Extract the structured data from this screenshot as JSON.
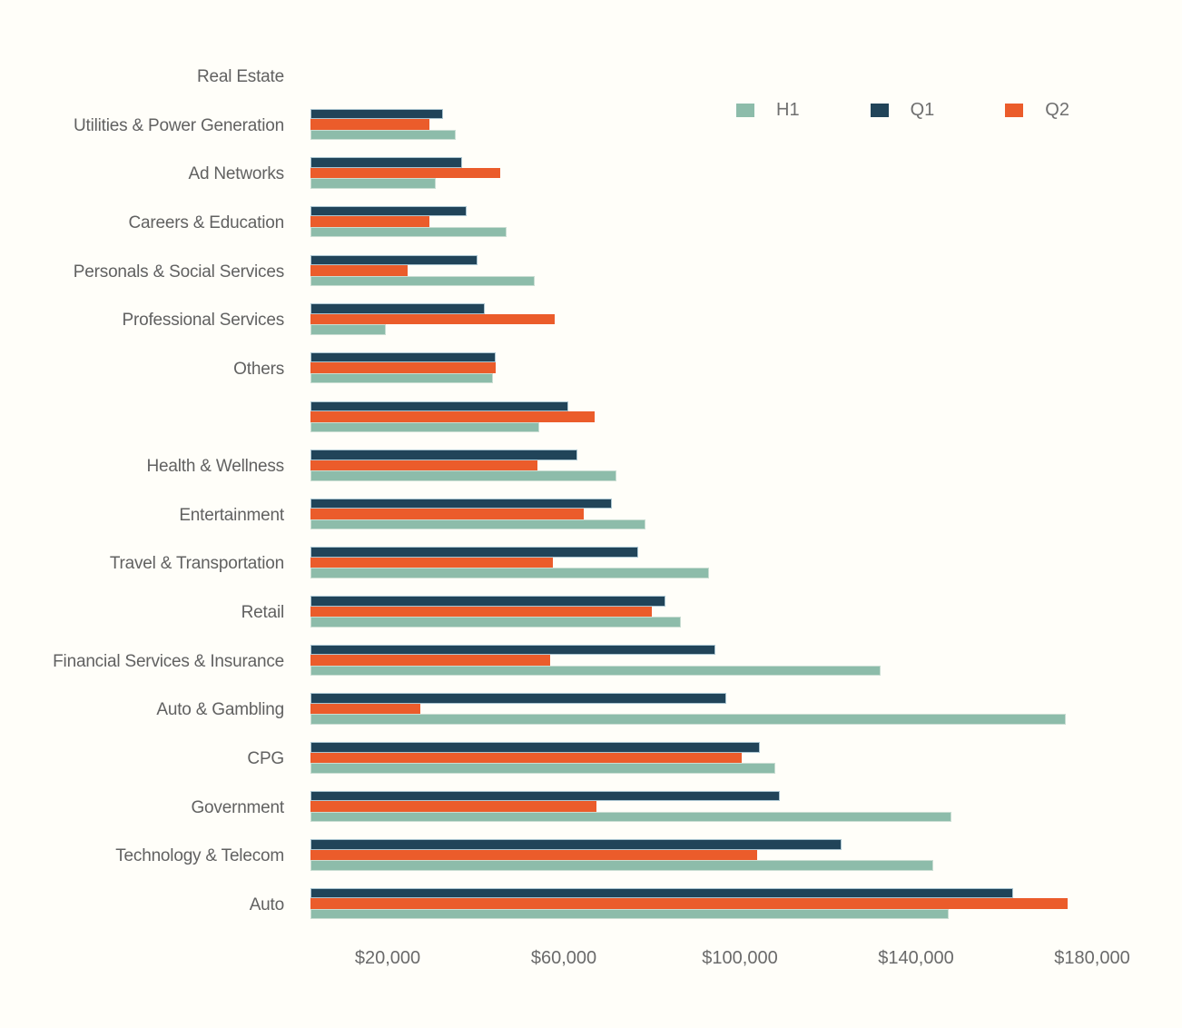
{
  "chart_data": {
    "type": "bar",
    "orientation": "horizontal",
    "title": "",
    "xlabel": "",
    "ylabel": "",
    "grid": false,
    "legend_position": "top-right",
    "xlim": [
      0,
      180000
    ],
    "xticks": {
      "values": [
        20000,
        60000,
        100000,
        140000,
        180000
      ],
      "labels": [
        "$20,000",
        "$60,000",
        "$100,000",
        "$140,000",
        "$180,000"
      ]
    },
    "categories": [
      "Real Estate",
      "Utilities & Power Generation",
      "Ad Networks",
      "Careers & Education",
      "Personals & Social Services",
      "Professional Services",
      "Others",
      "",
      "Health & Wellness",
      "Entertainment",
      "Travel & Transportation",
      "Retail",
      "Financial Services & Insurance",
      "Auto & Gambling",
      "CPG",
      "Government",
      "Technology & Telecom",
      "Auto"
    ],
    "bar_order_top_to_bottom": [
      "Q1",
      "Q2",
      "H1"
    ],
    "series": [
      {
        "name": "H1",
        "color": "#8dbcaa",
        "values": [
          null,
          35500,
          31000,
          47000,
          53500,
          19500,
          44000,
          54500,
          72000,
          78500,
          93000,
          86500,
          132000,
          174000,
          108000,
          148000,
          144000,
          147500
        ]
      },
      {
        "name": "Q1",
        "color": "#214459",
        "values": [
          null,
          32500,
          37000,
          38000,
          40500,
          42000,
          44500,
          61000,
          63000,
          71000,
          77000,
          83000,
          94500,
          97000,
          104500,
          109000,
          123000,
          162000
        ]
      },
      {
        "name": "Q2",
        "color": "#eb5c2b",
        "values": [
          null,
          29500,
          45500,
          29500,
          24500,
          58000,
          44500,
          67000,
          54000,
          64500,
          57500,
          80000,
          57000,
          27500,
          100500,
          67500,
          104000,
          174500
        ]
      }
    ]
  },
  "legend": {
    "items": [
      {
        "label": "H1",
        "color": "#8dbcaa"
      },
      {
        "label": "Q1",
        "color": "#214459"
      },
      {
        "label": "Q2",
        "color": "#eb5c2b"
      }
    ]
  },
  "colors": {
    "background": "#fffef9",
    "label_text": "#616161",
    "tick_text": "#6a6a6a",
    "q1_stroke": "#aac5d1",
    "h1_stroke": "#c9ddd2"
  }
}
